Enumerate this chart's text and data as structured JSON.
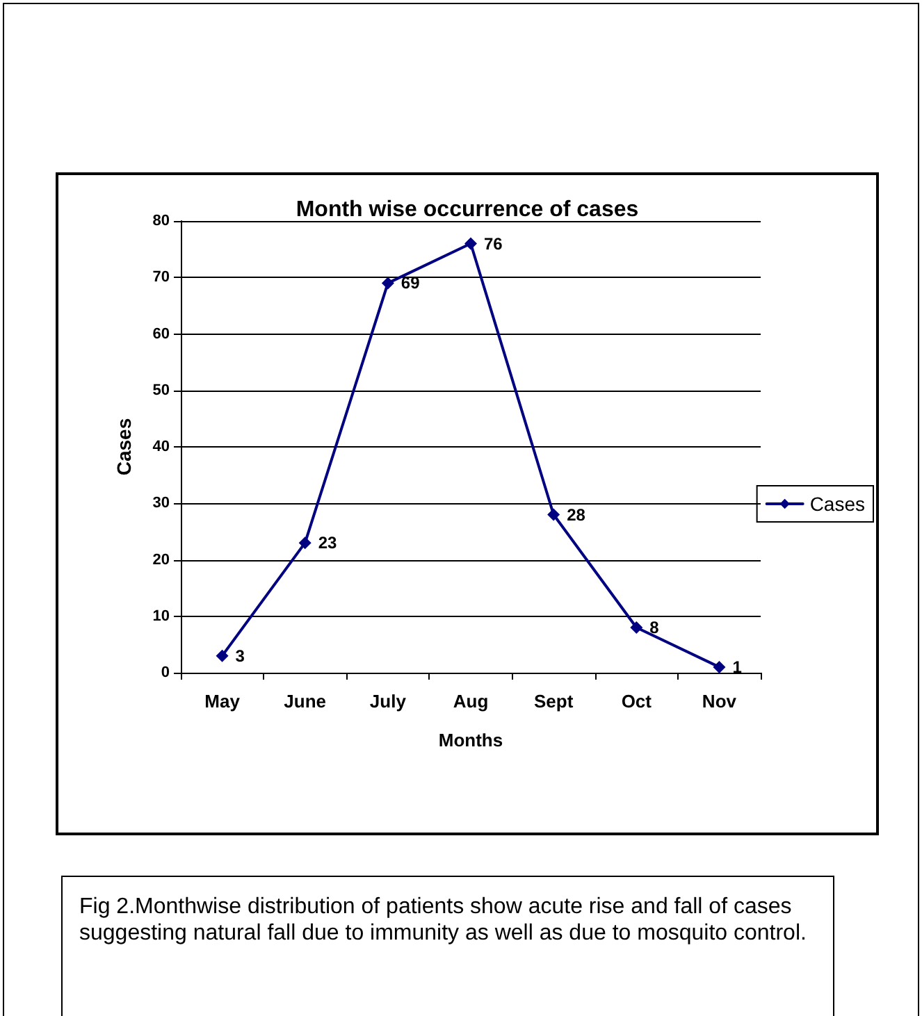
{
  "chart_data": {
    "type": "line",
    "title": "Month wise occurrence of cases",
    "xlabel": "Months",
    "ylabel": "Cases",
    "categories": [
      "May",
      "June",
      "July",
      "Aug",
      "Sept",
      "Oct",
      "Nov"
    ],
    "series": [
      {
        "name": "Cases",
        "color": "#000080",
        "values": [
          3,
          23,
          69,
          76,
          28,
          8,
          1
        ]
      }
    ],
    "ylim": [
      0,
      80
    ],
    "yticks": [
      0,
      10,
      20,
      30,
      40,
      50,
      60,
      70,
      80
    ],
    "grid": "y",
    "legend": "right",
    "marker": "diamond",
    "line_style": "solid",
    "data_labels": true,
    "annotations": [
      "Fig 2.Monthwise distribution of patients show acute rise and fall of cases suggesting natural fall due to immunity as well as due to mosquito control."
    ]
  }
}
